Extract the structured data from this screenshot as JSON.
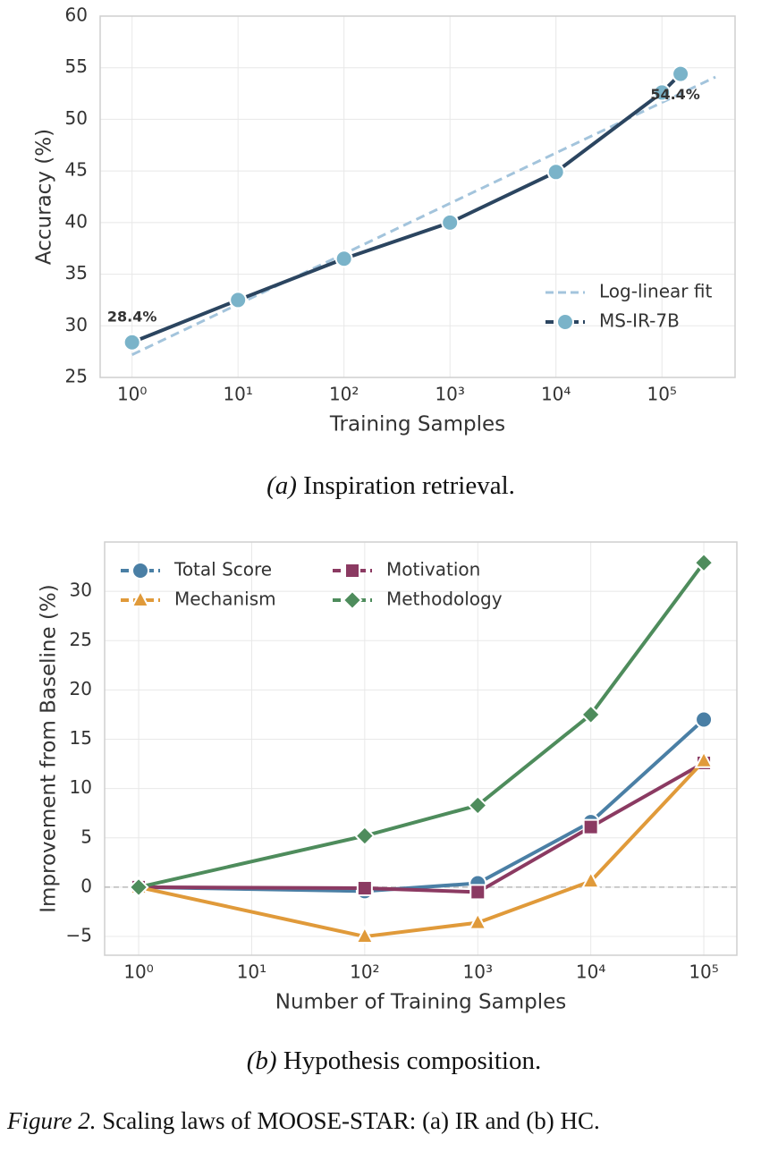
{
  "chart_data": [
    {
      "type": "line",
      "xscale": "log",
      "xlabel": "Training Samples",
      "ylabel": "Accuracy (%)",
      "xlim": [
        0.5,
        490000
      ],
      "ylim": [
        25,
        60
      ],
      "xticks": [
        {
          "value": 1,
          "label": "10⁰"
        },
        {
          "value": 10,
          "label": "10¹"
        },
        {
          "value": 100,
          "label": "10²"
        },
        {
          "value": 1000,
          "label": "10³"
        },
        {
          "value": 10000,
          "label": "10⁴"
        },
        {
          "value": 100000,
          "label": "10⁵"
        }
      ],
      "yticks": [
        25,
        30,
        35,
        40,
        45,
        50,
        55,
        60
      ],
      "grid": true,
      "legend": "lower right",
      "legend_columns": 1,
      "series": [
        {
          "name": "Log-linear fit",
          "color": "#a3c4dc",
          "dashed": true,
          "x": [
            1,
            320000
          ],
          "values": [
            27.2,
            54.1
          ]
        },
        {
          "name": "MS-IR-7B",
          "color": "#2b4560",
          "marker": "circle",
          "marker_color": "#7ab3c9",
          "x": [
            1,
            10,
            100,
            1000,
            10000,
            100000,
            150000
          ],
          "values": [
            28.4,
            32.5,
            36.5,
            40.0,
            44.9,
            52.6,
            54.4
          ],
          "value_labels": [
            "28.4%",
            null,
            null,
            null,
            null,
            null,
            "54.4%"
          ]
        }
      ],
      "caption_label": "(a)",
      "caption": "Inspiration retrieval."
    },
    {
      "type": "line",
      "xscale": "log",
      "xlabel": "Number of Training Samples",
      "ylabel": "Improvement from Baseline (%)",
      "xlim": [
        0.5,
        196000
      ],
      "ylim": [
        -6.9,
        35
      ],
      "xticks": [
        {
          "value": 1,
          "label": "10⁰"
        },
        {
          "value": 10,
          "label": "10¹"
        },
        {
          "value": 100,
          "label": "10²"
        },
        {
          "value": 1000,
          "label": "10³"
        },
        {
          "value": 10000,
          "label": "10⁴"
        },
        {
          "value": 100000,
          "label": "10⁵"
        }
      ],
      "yticks": [
        {
          "value": -5,
          "label": "−5"
        },
        0,
        5,
        10,
        15,
        20,
        25,
        30
      ],
      "grid": true,
      "hline": 0,
      "legend": "upper left",
      "legend_columns": 2,
      "series": [
        {
          "name": "Total Score",
          "color": "#4a7fa5",
          "marker": "circle",
          "x": [
            1,
            100,
            1000,
            10000,
            100000
          ],
          "values": [
            0,
            -0.4,
            0.4,
            6.6,
            17.0
          ]
        },
        {
          "name": "Motivation",
          "color": "#8b3a62",
          "marker": "square",
          "x": [
            1,
            100,
            1000,
            10000,
            100000
          ],
          "values": [
            0,
            -0.1,
            -0.5,
            6.1,
            12.6
          ]
        },
        {
          "name": "Mechanism",
          "color": "#e09a3a",
          "marker": "triangle",
          "x": [
            1,
            100,
            1000,
            10000,
            100000
          ],
          "values": [
            0,
            -5.0,
            -3.6,
            0.6,
            12.8
          ]
        },
        {
          "name": "Methodology",
          "color": "#4e8c5c",
          "marker": "diamond",
          "x": [
            1,
            100,
            1000,
            10000,
            100000
          ],
          "values": [
            0,
            5.2,
            8.3,
            17.5,
            32.9
          ]
        }
      ],
      "caption_label": "(b)",
      "caption": "Hypothesis composition."
    }
  ],
  "figure_caption": {
    "label": "Figure 2.",
    "text": "Scaling laws of MOOSE-STAR: (a) IR and (b) HC."
  }
}
